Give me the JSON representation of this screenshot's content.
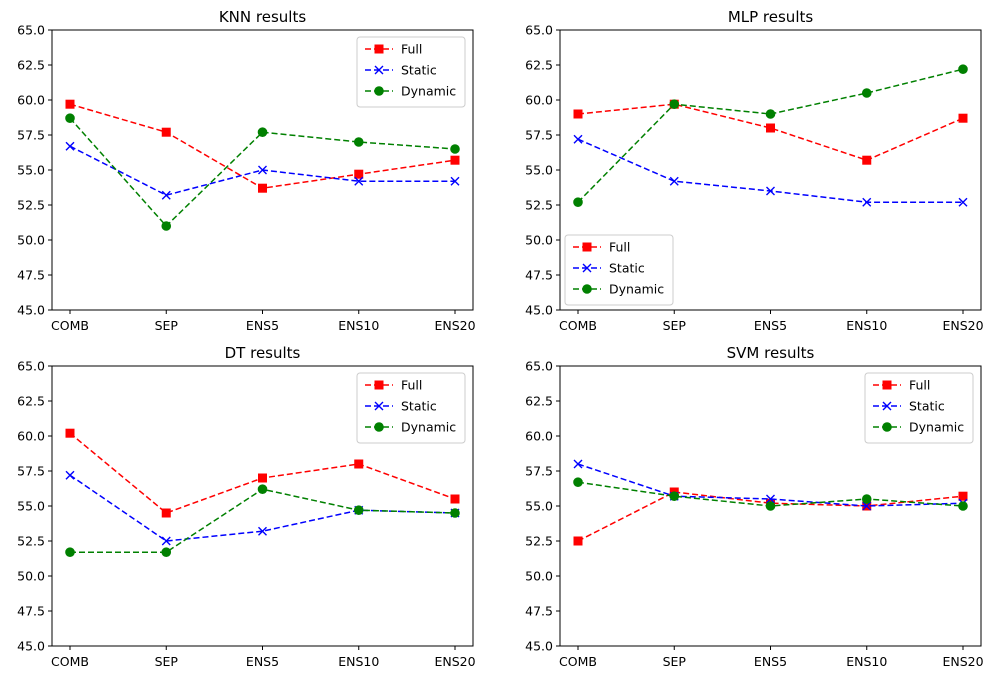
{
  "colors": {
    "Full": "#ff0000",
    "Static": "#0000ff",
    "Dynamic": "#008000",
    "frame": "#000000"
  },
  "markers": {
    "Full": "square",
    "Static": "x",
    "Dynamic": "circle"
  },
  "chart_data": [
    {
      "type": "line",
      "title": "KNN results",
      "categories": [
        "COMB",
        "SEP",
        "ENS5",
        "ENS10",
        "ENS20"
      ],
      "ylim": [
        45.0,
        65.0
      ],
      "yticks": [
        "45.0",
        "47.5",
        "50.0",
        "52.5",
        "55.0",
        "57.5",
        "60.0",
        "62.5",
        "65.0"
      ],
      "grid": false,
      "legend": "upper-right",
      "series": [
        {
          "name": "Full",
          "values": [
            59.7,
            57.7,
            53.7,
            54.7,
            55.7
          ]
        },
        {
          "name": "Static",
          "values": [
            56.7,
            53.2,
            55.0,
            54.2,
            54.2
          ]
        },
        {
          "name": "Dynamic",
          "values": [
            58.7,
            51.0,
            57.7,
            57.0,
            56.5
          ]
        }
      ]
    },
    {
      "type": "line",
      "title": "MLP results",
      "categories": [
        "COMB",
        "SEP",
        "ENS5",
        "ENS10",
        "ENS20"
      ],
      "ylim": [
        45.0,
        65.0
      ],
      "yticks": [
        "45.0",
        "47.5",
        "50.0",
        "52.5",
        "55.0",
        "57.5",
        "60.0",
        "62.5",
        "65.0"
      ],
      "grid": false,
      "legend": "lower-left",
      "series": [
        {
          "name": "Full",
          "values": [
            59.0,
            59.7,
            58.0,
            55.7,
            58.7
          ]
        },
        {
          "name": "Static",
          "values": [
            57.2,
            54.2,
            53.5,
            52.7,
            52.7
          ]
        },
        {
          "name": "Dynamic",
          "values": [
            52.7,
            59.7,
            59.0,
            60.5,
            62.2
          ]
        }
      ]
    },
    {
      "type": "line",
      "title": "DT results",
      "categories": [
        "COMB",
        "SEP",
        "ENS5",
        "ENS10",
        "ENS20"
      ],
      "ylim": [
        45.0,
        65.0
      ],
      "yticks": [
        "45.0",
        "47.5",
        "50.0",
        "52.5",
        "55.0",
        "57.5",
        "60.0",
        "62.5",
        "65.0"
      ],
      "grid": false,
      "legend": "upper-right",
      "series": [
        {
          "name": "Full",
          "values": [
            60.2,
            54.5,
            57.0,
            58.0,
            55.5
          ]
        },
        {
          "name": "Static",
          "values": [
            57.2,
            52.5,
            53.2,
            54.7,
            54.5
          ]
        },
        {
          "name": "Dynamic",
          "values": [
            51.7,
            51.7,
            56.2,
            54.7,
            54.5
          ]
        }
      ]
    },
    {
      "type": "line",
      "title": "SVM results",
      "categories": [
        "COMB",
        "SEP",
        "ENS5",
        "ENS10",
        "ENS20"
      ],
      "ylim": [
        45.0,
        65.0
      ],
      "yticks": [
        "45.0",
        "47.5",
        "50.0",
        "52.5",
        "55.0",
        "57.5",
        "60.0",
        "62.5",
        "65.0"
      ],
      "grid": false,
      "legend": "upper-right",
      "series": [
        {
          "name": "Full",
          "values": [
            52.5,
            56.0,
            55.2,
            55.0,
            55.7
          ]
        },
        {
          "name": "Static",
          "values": [
            58.0,
            55.7,
            55.5,
            55.0,
            55.2
          ]
        },
        {
          "name": "Dynamic",
          "values": [
            56.7,
            55.7,
            55.0,
            55.5,
            55.0
          ]
        }
      ]
    }
  ]
}
